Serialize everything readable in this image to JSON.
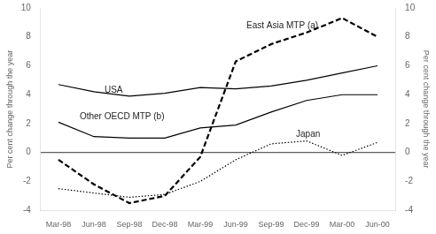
{
  "chart_data": {
    "type": "line",
    "categories": [
      "Mar-98",
      "Jun-98",
      "Sep-98",
      "Dec-98",
      "Mar-99",
      "Jun-99",
      "Sep-99",
      "Dec-99",
      "Mar-00",
      "Jun-00"
    ],
    "color": "#000000",
    "series": [
      {
        "values": [
          4.7,
          4.2,
          3.9,
          4.1,
          4.5,
          4.4,
          4.6,
          5.0,
          5.5,
          6.0
        ],
        "line_style": "solid"
      },
      {
        "values": [
          2.1,
          1.1,
          1.0,
          1.0,
          1.7,
          1.9,
          2.8,
          3.6,
          4.0,
          4.0
        ],
        "line_style": "solid"
      },
      {
        "values": [
          -0.5,
          -2.2,
          -3.5,
          -3.0,
          -0.3,
          6.3,
          7.5,
          8.3,
          9.3,
          8.0
        ],
        "line_style": "dashed"
      },
      {
        "values": [
          -2.5,
          -2.8,
          -3.1,
          -2.9,
          -2.0,
          -0.5,
          0.6,
          0.8,
          -0.2,
          0.7
        ],
        "line_style": "dotted"
      }
    ],
    "ylabel": "Per cent change through the year",
    "y2label": "Per cent change through the year",
    "ylim": [
      -4,
      10
    ],
    "yticks": [
      -4,
      -2,
      0,
      2,
      4,
      6,
      8,
      10
    ],
    "y2lim": [
      -4,
      10
    ],
    "y2ticks": [
      -4,
      -2,
      0,
      2,
      4,
      6,
      8,
      10
    ],
    "grid": false,
    "annotations": [
      {
        "text": "USA",
        "x": 1.3,
        "y": 4.15
      },
      {
        "text": "Other OECD MTP (b)",
        "x": 0.6,
        "y": 2.3
      },
      {
        "text": "East Asia MTP (a)",
        "x": 5.3,
        "y": 8.6
      },
      {
        "text": "Japan",
        "x": 6.7,
        "y": 1.1
      }
    ]
  }
}
